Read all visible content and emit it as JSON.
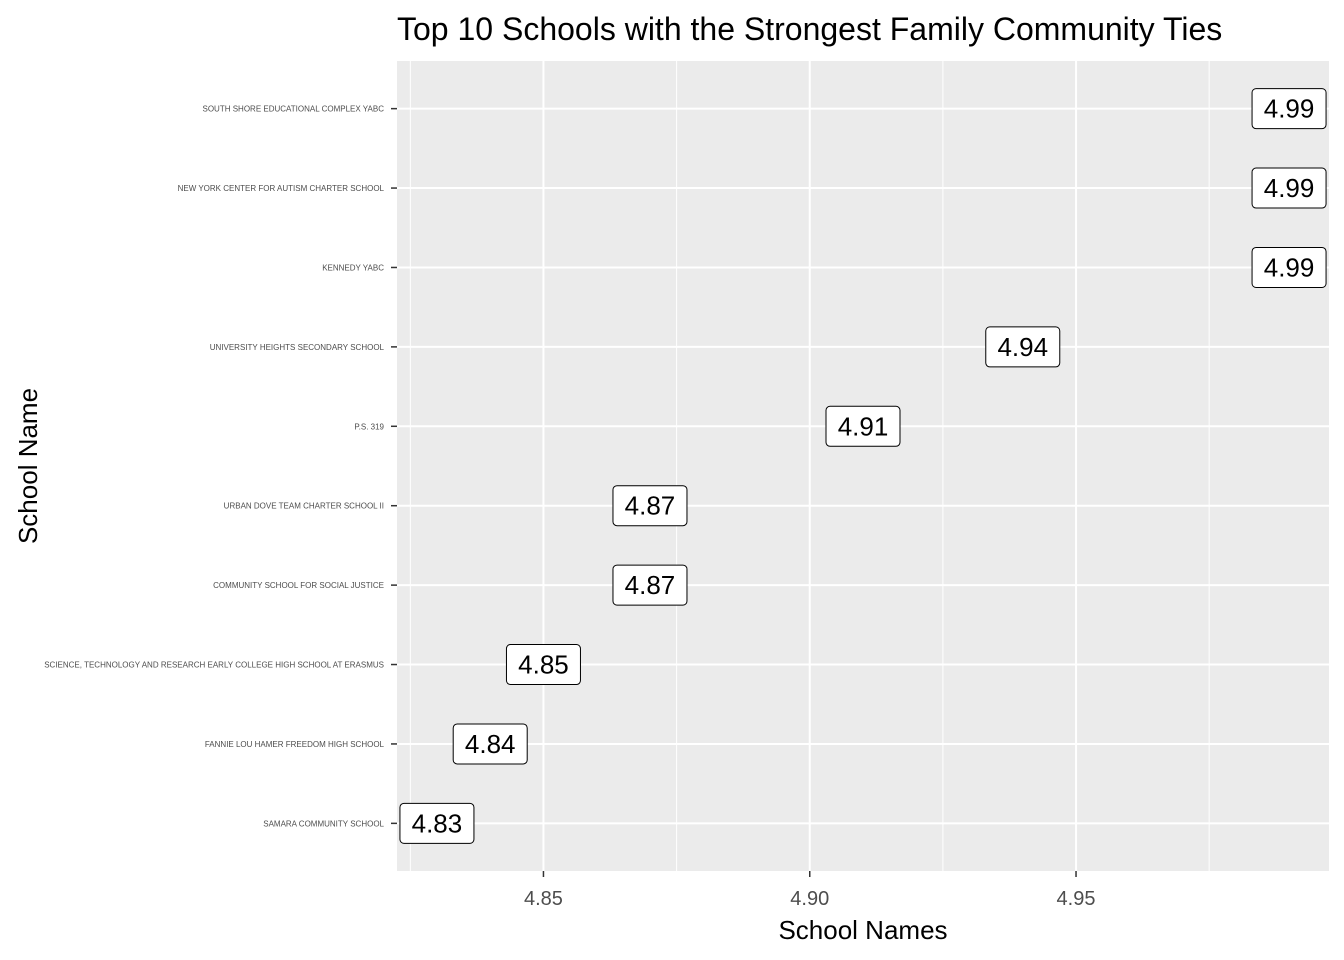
{
  "chart_data": {
    "type": "scatter",
    "title": "Top 10 Schools with the Strongest Family Community Ties",
    "xlabel": "School Names",
    "ylabel": "School Name",
    "xlim": [
      4.8225,
      4.9975
    ],
    "x_ticks": [
      4.85,
      4.9,
      4.95
    ],
    "grid": true,
    "categories": [
      "SAMARA COMMUNITY SCHOOL",
      "FANNIE LOU HAMER FREEDOM HIGH SCHOOL",
      "SCIENCE, TECHNOLOGY AND RESEARCH EARLY COLLEGE HIGH SCHOOL AT ERASMUS",
      "COMMUNITY SCHOOL FOR SOCIAL JUSTICE",
      "URBAN DOVE TEAM CHARTER SCHOOL II",
      "P.S. 319",
      "UNIVERSITY HEIGHTS SECONDARY SCHOOL",
      "KENNEDY YABC",
      "NEW YORK CENTER FOR AUTISM CHARTER SCHOOL",
      "SOUTH SHORE EDUCATIONAL COMPLEX YABC"
    ],
    "values": [
      4.83,
      4.84,
      4.85,
      4.87,
      4.87,
      4.91,
      4.94,
      4.99,
      4.99,
      4.99
    ],
    "data_labels": [
      "4.83",
      "4.84",
      "4.85",
      "4.87",
      "4.87",
      "4.91",
      "4.94",
      "4.99",
      "4.99",
      "4.99"
    ],
    "colors": {
      "panel": "#ebebeb",
      "grid": "#ffffff",
      "label_fill": "#ffffff",
      "label_border": "#000000",
      "tick": "#4d4d4d"
    }
  }
}
